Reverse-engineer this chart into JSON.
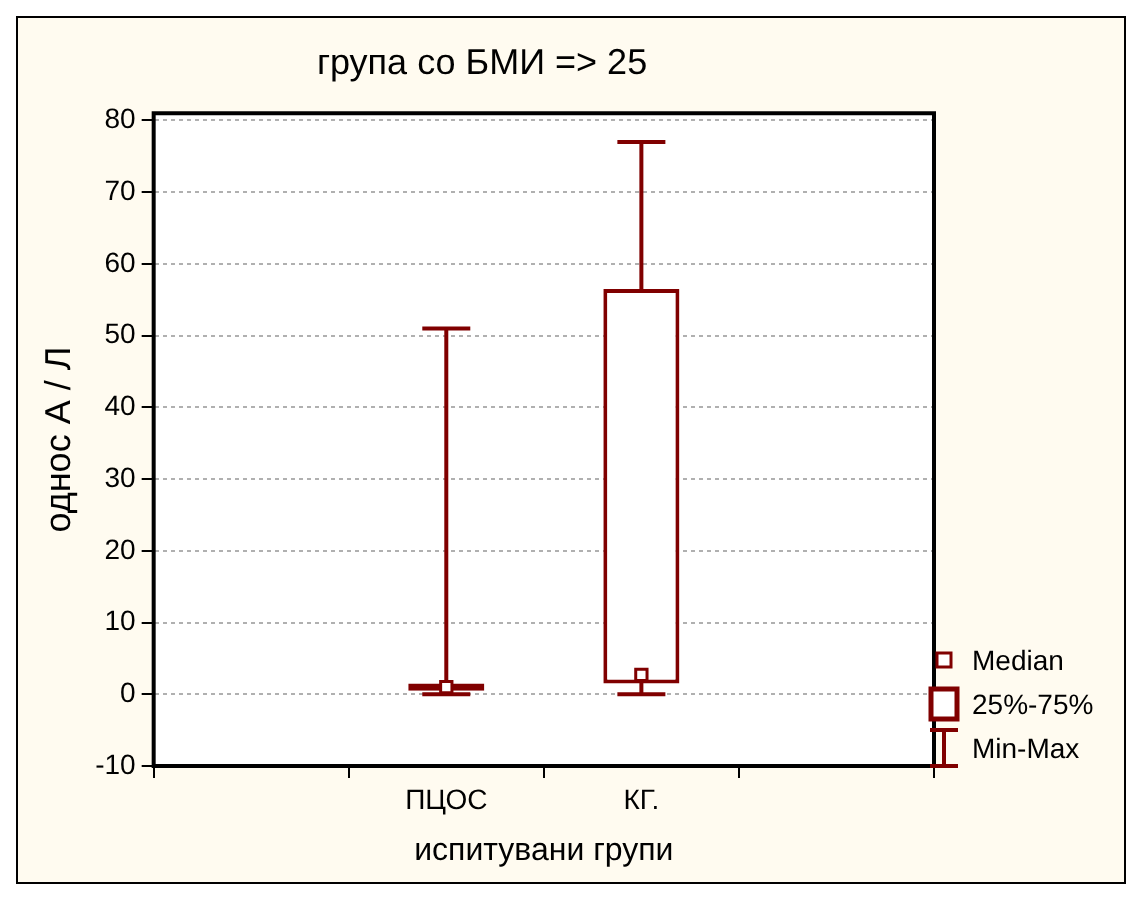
{
  "chart_data": {
    "type": "box",
    "title": "група со БМИ => 25",
    "xlabel": "испитувани групи",
    "ylabel": "однос А / Л",
    "categories": [
      null,
      "ПЦОС",
      "КГ.",
      null
    ],
    "series": [
      {
        "color": "#800000",
        "boxes": [
          null,
          {
            "low": 0,
            "q1": 0.5,
            "median": 1,
            "q3": 1.5,
            "high": 51
          },
          {
            "low": 0,
            "q1": 1.5,
            "median": 2.7,
            "q3": 56.5,
            "high": 77
          },
          null
        ]
      }
    ],
    "ylim": [
      -10,
      81
    ],
    "yticks": [
      -10,
      0,
      10,
      20,
      30,
      40,
      50,
      60,
      70,
      80
    ],
    "grid": "y",
    "annotations": [
      "Median",
      "25%-75%",
      "Min-Max"
    ]
  }
}
